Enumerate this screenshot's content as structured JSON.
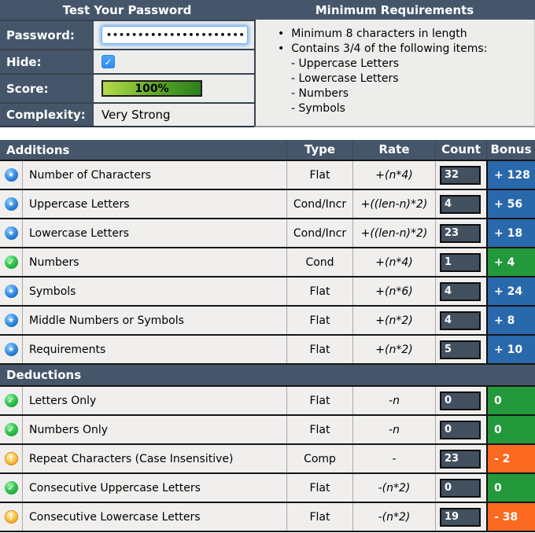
{
  "icons": {
    "star": "★",
    "check": "✓",
    "warning": "!",
    "bullet": "•"
  },
  "colors": {
    "blue": "#2a68ac",
    "green": "#23993c",
    "orange": "#fc6a21",
    "header_slate": "#46566a",
    "checkbox_blue": "#3b99fd",
    "score_green_start": "#b5d94a",
    "score_green_end": "#2e7f1a"
  },
  "test_panel": {
    "title": "Test Your Password",
    "password_label": "Password:",
    "password_value": "•••••••••••••••••••••••••••",
    "hide_label": "Hide:",
    "hide_checked": true,
    "score_label": "Score:",
    "score_value": "100%",
    "complexity_label": "Complexity:",
    "complexity_value": "Very Strong"
  },
  "requirements_panel": {
    "title": "Minimum Requirements",
    "items": [
      {
        "text": "Minimum 8 characters in length",
        "sub": []
      },
      {
        "text": "Contains 3/4 of the following items:",
        "sub": [
          "- Uppercase Letters",
          "- Lowercase Letters",
          "- Numbers",
          "- Symbols"
        ]
      }
    ]
  },
  "table": {
    "columns": {
      "type": "Type",
      "rate": "Rate",
      "count": "Count",
      "bonus": "Bonus"
    },
    "sections": [
      {
        "title": "Additions",
        "rows": [
          {
            "icon": "star",
            "name": "Number of Characters",
            "type": "Flat",
            "rate": "+(n*4)",
            "count": "32",
            "bonus": "+ 128",
            "color": "blue"
          },
          {
            "icon": "star",
            "name": "Uppercase Letters",
            "type": "Cond/Incr",
            "rate": "+((len-n)*2)",
            "count": "4",
            "bonus": "+ 56",
            "color": "blue"
          },
          {
            "icon": "star",
            "name": "Lowercase Letters",
            "type": "Cond/Incr",
            "rate": "+((len-n)*2)",
            "count": "23",
            "bonus": "+ 18",
            "color": "blue"
          },
          {
            "icon": "check",
            "name": "Numbers",
            "type": "Cond",
            "rate": "+(n*4)",
            "count": "1",
            "bonus": "+ 4",
            "color": "green"
          },
          {
            "icon": "star",
            "name": "Symbols",
            "type": "Flat",
            "rate": "+(n*6)",
            "count": "4",
            "bonus": "+ 24",
            "color": "blue"
          },
          {
            "icon": "star",
            "name": "Middle Numbers or Symbols",
            "type": "Flat",
            "rate": "+(n*2)",
            "count": "4",
            "bonus": "+ 8",
            "color": "blue"
          },
          {
            "icon": "star",
            "name": "Requirements",
            "type": "Flat",
            "rate": "+(n*2)",
            "count": "5",
            "bonus": "+ 10",
            "color": "blue"
          }
        ]
      },
      {
        "title": "Deductions",
        "rows": [
          {
            "icon": "check",
            "name": "Letters Only",
            "type": "Flat",
            "rate": "-n",
            "count": "0",
            "bonus": "0",
            "color": "green"
          },
          {
            "icon": "check",
            "name": "Numbers Only",
            "type": "Flat",
            "rate": "-n",
            "count": "0",
            "bonus": "0",
            "color": "green"
          },
          {
            "icon": "warning",
            "name": "Repeat Characters (Case Insensitive)",
            "type": "Comp",
            "rate": "-",
            "count": "23",
            "bonus": "- 2",
            "color": "orange"
          },
          {
            "icon": "check",
            "name": "Consecutive Uppercase Letters",
            "type": "Flat",
            "rate": "-(n*2)",
            "count": "0",
            "bonus": "0",
            "color": "green"
          },
          {
            "icon": "warning",
            "name": "Consecutive Lowercase Letters",
            "type": "Flat",
            "rate": "-(n*2)",
            "count": "19",
            "bonus": "- 38",
            "color": "orange"
          }
        ]
      }
    ]
  }
}
